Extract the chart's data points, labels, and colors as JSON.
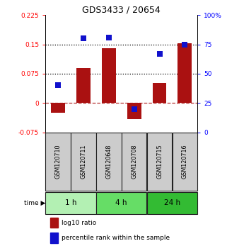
{
  "title": "GDS3433 / 20654",
  "samples": [
    "GSM120710",
    "GSM120711",
    "GSM120648",
    "GSM120708",
    "GSM120715",
    "GSM120716"
  ],
  "groups": [
    {
      "label": "1 h",
      "indices": [
        0,
        1
      ],
      "color": "#b3f0b3"
    },
    {
      "label": "4 h",
      "indices": [
        2,
        3
      ],
      "color": "#66dd66"
    },
    {
      "label": "24 h",
      "indices": [
        4,
        5
      ],
      "color": "#33bb33"
    }
  ],
  "log10_ratio": [
    -0.025,
    0.09,
    0.14,
    -0.042,
    0.052,
    0.152
  ],
  "percentile_rank": [
    40,
    80,
    81,
    20,
    67,
    75
  ],
  "bar_color": "#aa1111",
  "dot_color": "#1111cc",
  "left_ylim": [
    -0.075,
    0.225
  ],
  "right_ylim": [
    0,
    100
  ],
  "left_yticks": [
    -0.075,
    0,
    0.075,
    0.15,
    0.225
  ],
  "right_yticks": [
    0,
    25,
    50,
    75,
    100
  ],
  "hlines_dotted": [
    0.075,
    0.15
  ],
  "hline_dashed": 0,
  "left_ytick_labels": [
    "-0.075",
    "0",
    "0.075",
    "0.15",
    "0.225"
  ],
  "right_ytick_labels": [
    "0",
    "25",
    "50",
    "75",
    "100%"
  ],
  "bar_width": 0.55,
  "dot_size": 28,
  "sample_box_color": "#cccccc",
  "sample_box_border": "#222222",
  "time_label": "time",
  "legend_bar_label": "log10 ratio",
  "legend_dot_label": "percentile rank within the sample"
}
